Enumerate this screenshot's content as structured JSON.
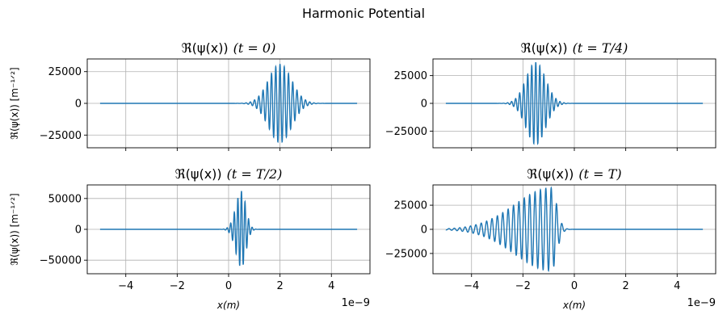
{
  "figure_title": "Harmonic Potential",
  "colors": {
    "line": "#1f77b4",
    "grid": "#b0b0b0",
    "axes": "#000000"
  },
  "chart_data": [
    {
      "type": "line",
      "title_prefix": "ℜ(ψ(x))",
      "title_time": "(t = 0)",
      "ylabel": "ℜ(ψ(x)) [m⁻¹ᐟ²]",
      "xlabel": "",
      "x_offset_label": "",
      "xlim": [
        -5.5,
        5.5
      ],
      "ylim": [
        -35000,
        35000
      ],
      "xticks": [
        -4,
        -2,
        0,
        2,
        4
      ],
      "xtick_labels": [],
      "yticks": [
        -25000,
        0,
        25000
      ],
      "ytick_labels": [
        "−25000",
        "0",
        "25000"
      ],
      "packet": {
        "center": 2.0,
        "sigma": 0.45,
        "amplitude": 31000,
        "wavenumber": 38,
        "skew": 0
      },
      "x_range": [
        -5,
        5
      ],
      "grid": true
    },
    {
      "type": "line",
      "title_prefix": "ℜ(ψ(x))",
      "title_time": "(t = T/4)",
      "ylabel": "",
      "xlabel": "",
      "x_offset_label": "",
      "xlim": [
        -5.5,
        5.5
      ],
      "ylim": [
        -40000,
        40000
      ],
      "xticks": [
        -4,
        -2,
        0,
        2,
        4
      ],
      "xtick_labels": [],
      "yticks": [
        -25000,
        0,
        25000
      ],
      "ytick_labels": [
        "−25000",
        "0",
        "25000"
      ],
      "packet": {
        "center": -1.5,
        "sigma": 0.38,
        "amplitude": 37000,
        "wavenumber": 40,
        "skew": 0
      },
      "x_range": [
        -5,
        5
      ],
      "grid": true
    },
    {
      "type": "line",
      "title_prefix": "ℜ(ψ(x))",
      "title_time": "(t = T/2)",
      "ylabel": "ℜ(ψ(x)) [m⁻¹ᐟ²]",
      "xlabel": "x(m)",
      "x_offset_label": "1e−9",
      "xlim": [
        -5.5,
        5.5
      ],
      "ylim": [
        -72000,
        72000
      ],
      "xticks": [
        -4,
        -2,
        0,
        2,
        4
      ],
      "xtick_labels": [
        "−4",
        "−2",
        "0",
        "2",
        "4"
      ],
      "yticks": [
        -50000,
        0,
        50000
      ],
      "ytick_labels": [
        "−50000",
        "0",
        "50000"
      ],
      "packet": {
        "center": 0.5,
        "sigma": 0.22,
        "amplitude": 62000,
        "wavenumber": 45,
        "skew": 0.25
      },
      "x_range": [
        -5,
        5
      ],
      "grid": true
    },
    {
      "type": "line",
      "title_prefix": "ℜ(ψ(x))",
      "title_time": "(t = T)",
      "ylabel": "",
      "xlabel": "x(m)",
      "x_offset_label": "1e−9",
      "xlim": [
        -5.5,
        5.5
      ],
      "ylim": [
        -46000,
        46000
      ],
      "xticks": [
        -4,
        -2,
        0,
        2,
        4
      ],
      "xtick_labels": [
        "−4",
        "−2",
        "0",
        "2",
        "4"
      ],
      "yticks": [
        -25000,
        0,
        25000
      ],
      "ytick_labels": [
        "−25000",
        "0",
        "25000"
      ],
      "packet": {
        "center": -0.9,
        "sigma": 1.4,
        "amplitude": 43000,
        "wavenumber": 30,
        "skew": 1.0
      },
      "x_range": [
        -5,
        5
      ],
      "grid": true
    }
  ]
}
